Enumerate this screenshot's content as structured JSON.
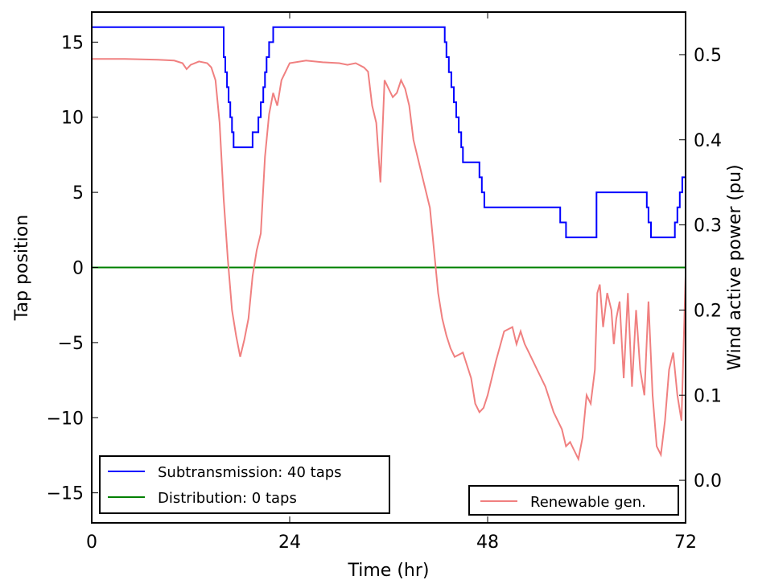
{
  "chart_data": {
    "type": "line",
    "xlabel": "Time (hr)",
    "ylabel_left": "Tap position",
    "ylabel_right": "Wind active power (pu)",
    "xlim": [
      0,
      72
    ],
    "ylim_left": [
      -17,
      17
    ],
    "ylim_right": [
      -0.05,
      0.55
    ],
    "x_ticks": [
      0,
      24,
      48,
      72
    ],
    "y_ticks_left": [
      15,
      10,
      5,
      0,
      -5,
      -10,
      -15
    ],
    "y_ticks_right": [
      0.5,
      0.4,
      0.3,
      0.2,
      0.1,
      0.0
    ],
    "x_tick_labels": [
      "0",
      "24",
      "48",
      "72"
    ],
    "y_tick_labels_left": [
      "15",
      "10",
      "5",
      "0",
      "−5",
      "−10",
      "−15"
    ],
    "y_tick_labels_right": [
      "0.5",
      "0.4",
      "0.3",
      "0.2",
      "0.1",
      "0.0"
    ],
    "grid": false,
    "legends": [
      {
        "placement": "lower-left",
        "entries": [
          {
            "label": "Subtransmission: 40 taps",
            "color": "#0000ff"
          },
          {
            "label": "Distribution: 0 taps",
            "color": "#008000"
          }
        ]
      },
      {
        "placement": "lower-right",
        "entries": [
          {
            "label": "Renewable gen.",
            "color": "#f08080"
          }
        ]
      }
    ],
    "series": [
      {
        "name": "Subtransmission: 40 taps",
        "axis": "left",
        "color": "#0000ff",
        "step": true,
        "x": [
          0,
          15.8,
          16.0,
          16.2,
          16.4,
          16.6,
          16.8,
          17.0,
          17.2,
          19.5,
          20.2,
          20.5,
          20.8,
          21.0,
          21.2,
          21.5,
          22.0,
          42.5,
          42.8,
          43.0,
          43.3,
          43.6,
          43.9,
          44.2,
          44.5,
          44.8,
          45.0,
          45.3,
          45.6,
          46.0,
          47.0,
          47.3,
          47.6,
          47.9,
          48.0,
          56.8,
          57.0,
          57.5,
          57.8,
          61.0,
          61.2,
          67.0,
          67.3,
          67.5,
          67.8,
          68.0,
          70.5,
          70.7,
          71.0,
          71.3,
          71.6,
          72
        ],
        "y": [
          16,
          16,
          14,
          13,
          12,
          11,
          10,
          9,
          8,
          9,
          10,
          11,
          12,
          13,
          14,
          15,
          16,
          16,
          15,
          14,
          13,
          12,
          11,
          10,
          9,
          8,
          7,
          7,
          7,
          7,
          6,
          5,
          4,
          4,
          4,
          3,
          3,
          2,
          2,
          2,
          5,
          5,
          4,
          3,
          2,
          2,
          2,
          3,
          4,
          5,
          6,
          6
        ]
      },
      {
        "name": "Distribution: 0 taps",
        "axis": "left",
        "color": "#008000",
        "step": false,
        "x": [
          0,
          72
        ],
        "y": [
          0,
          0
        ]
      },
      {
        "name": "Renewable gen.",
        "axis": "right",
        "color": "#f08080",
        "step": false,
        "x": [
          0,
          4,
          8,
          10,
          11,
          11.5,
          12,
          13,
          14,
          14.5,
          15,
          15.5,
          16,
          16.5,
          17,
          17.5,
          18,
          18.5,
          19,
          19.5,
          20,
          20.5,
          21,
          21.5,
          22,
          22.5,
          23,
          24,
          26,
          28,
          30,
          31,
          32,
          33,
          33.5,
          34,
          34.5,
          35,
          35.5,
          36,
          36.5,
          37,
          37.5,
          38,
          38.5,
          39,
          40,
          41,
          41.5,
          42,
          42.5,
          43,
          43.5,
          44,
          45,
          46,
          46.5,
          47,
          47.5,
          48,
          49,
          50,
          51,
          51.5,
          52,
          52.5,
          53,
          54,
          55,
          56,
          57,
          57.5,
          58,
          58.5,
          59,
          59.5,
          60,
          60.5,
          61,
          61.3,
          61.6,
          62,
          62.5,
          63,
          63.3,
          63.6,
          64,
          64.5,
          65,
          65.5,
          66,
          66.5,
          67,
          67.5,
          68,
          68.5,
          69,
          69.5,
          70,
          70.5,
          71,
          71.5,
          72
        ],
        "y": [
          0.495,
          0.495,
          0.494,
          0.493,
          0.49,
          0.483,
          0.488,
          0.492,
          0.49,
          0.485,
          0.47,
          0.42,
          0.33,
          0.26,
          0.2,
          0.17,
          0.145,
          0.165,
          0.19,
          0.24,
          0.27,
          0.29,
          0.38,
          0.43,
          0.455,
          0.44,
          0.47,
          0.49,
          0.493,
          0.491,
          0.49,
          0.488,
          0.49,
          0.485,
          0.48,
          0.44,
          0.42,
          0.35,
          0.47,
          0.46,
          0.45,
          0.455,
          0.47,
          0.46,
          0.44,
          0.4,
          0.36,
          0.32,
          0.27,
          0.22,
          0.19,
          0.17,
          0.155,
          0.145,
          0.15,
          0.12,
          0.09,
          0.08,
          0.085,
          0.1,
          0.14,
          0.175,
          0.18,
          0.16,
          0.175,
          0.16,
          0.15,
          0.13,
          0.11,
          0.08,
          0.06,
          0.04,
          0.045,
          0.035,
          0.025,
          0.05,
          0.1,
          0.09,
          0.13,
          0.22,
          0.23,
          0.18,
          0.22,
          0.2,
          0.16,
          0.19,
          0.21,
          0.12,
          0.22,
          0.11,
          0.2,
          0.13,
          0.1,
          0.21,
          0.1,
          0.04,
          0.03,
          0.07,
          0.13,
          0.15,
          0.1,
          0.07,
          0.24
        ]
      }
    ]
  }
}
